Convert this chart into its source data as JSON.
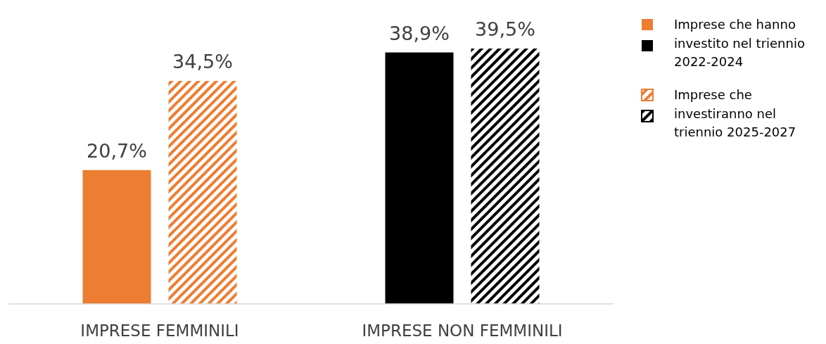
{
  "chart_data": {
    "type": "bar",
    "categories": [
      "IMPRESE FEMMINILI",
      "IMPRESE NON FEMMINILI"
    ],
    "series": [
      {
        "name": "Imprese che hanno investito nel triennio 2022-2024",
        "colors": [
          "#ed7d31",
          "#000000"
        ],
        "values": [
          20.7,
          38.9
        ],
        "value_labels": [
          "20,7%",
          "38,9%"
        ]
      },
      {
        "name": "Imprese che investiranno nel triennio 2025-2027",
        "colors": [
          "#ed7d31",
          "#000000"
        ],
        "values": [
          34.5,
          39.5
        ],
        "value_labels": [
          "34,5%",
          "39,5%"
        ]
      }
    ],
    "legend": "right"
  }
}
